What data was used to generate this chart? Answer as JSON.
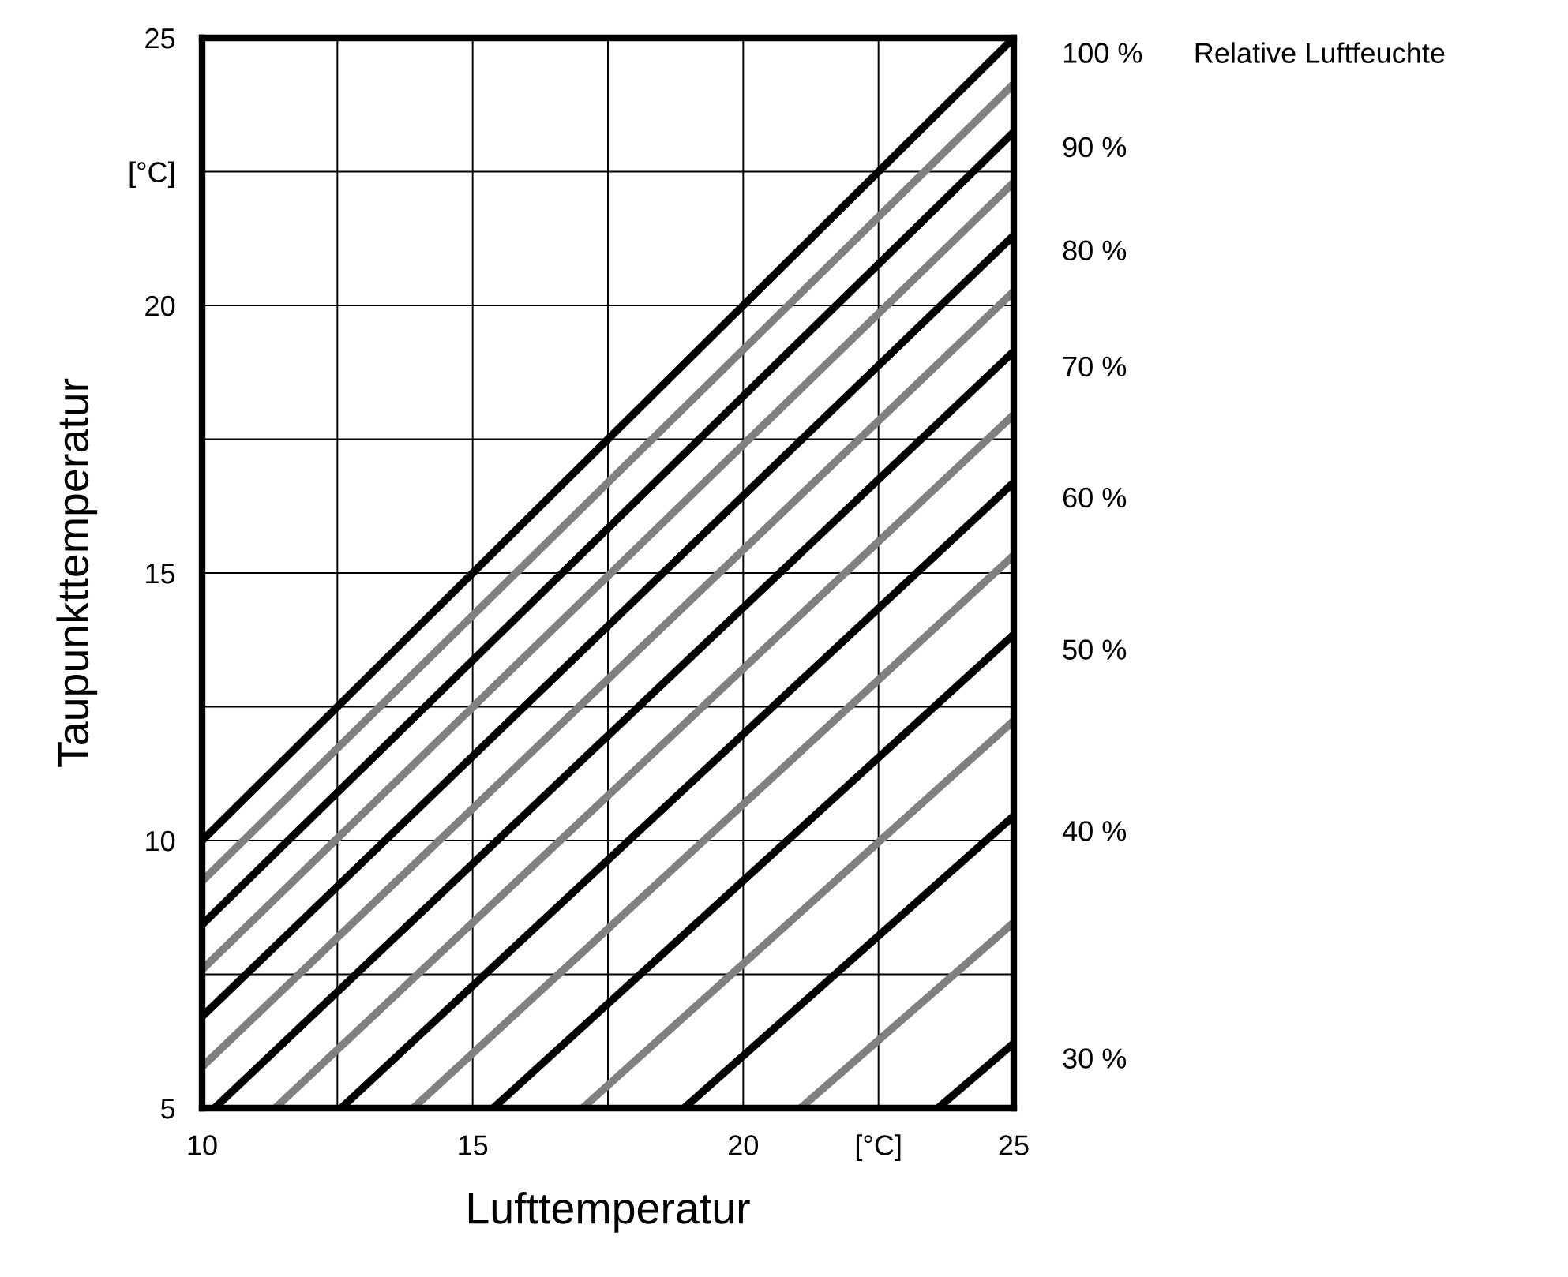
{
  "chart_data": {
    "type": "line",
    "xlabel": "Lufttemperatur",
    "ylabel": "Taupunkttemperatur",
    "xlim": [
      10,
      25
    ],
    "ylim": [
      5,
      25
    ],
    "xticks": [
      10,
      {
        "value": 12.5,
        "label": null
      },
      15,
      {
        "value": 17.5,
        "label": null
      },
      20,
      {
        "value": 22.5,
        "label": "[°C]"
      },
      25
    ],
    "yticks": [
      5,
      {
        "value": 7.5,
        "label": null
      },
      10,
      {
        "value": 12.5,
        "label": null
      },
      15,
      {
        "value": 17.5,
        "label": null
      },
      20,
      {
        "value": 22.5,
        "label": "[°C]"
      },
      25
    ],
    "grid": true,
    "legend": false,
    "marker": "none",
    "line_style": "solid",
    "annotations": [
      "Relative Luftfeuchte"
    ],
    "series": [
      {
        "name": "100 %",
        "color": "#000000",
        "x": [
          10,
          25
        ],
        "values": [
          10,
          25
        ]
      },
      {
        "color": "#808080",
        "x": [
          10,
          25
        ],
        "values": [
          9.24,
          24.14
        ]
      },
      {
        "name": "90 %",
        "color": "#000000",
        "x": [
          10,
          25
        ],
        "values": [
          8.43,
          23.24
        ]
      },
      {
        "color": "#808080",
        "x": [
          10,
          25
        ],
        "values": [
          7.59,
          22.3
        ]
      },
      {
        "name": "80 %",
        "color": "#000000",
        "x": [
          10,
          25
        ],
        "values": [
          6.71,
          21.31
        ]
      },
      {
        "color": "#808080",
        "x": [
          10,
          25
        ],
        "values": [
          5.77,
          20.26
        ]
      },
      {
        "name": "70 %",
        "color": "#000000",
        "x": [
          10.23,
          25
        ],
        "values": [
          5,
          19.14
        ]
      },
      {
        "color": "#808080",
        "x": [
          11.35,
          25
        ],
        "values": [
          5,
          17.96
        ]
      },
      {
        "name": "60 %",
        "color": "#000000",
        "x": [
          12.57,
          25
        ],
        "values": [
          5,
          16.69
        ]
      },
      {
        "color": "#808080",
        "x": [
          13.9,
          25
        ],
        "values": [
          5,
          15.33
        ]
      },
      {
        "name": "50 %",
        "color": "#000000",
        "x": [
          15.38,
          25
        ],
        "values": [
          5,
          13.85
        ]
      },
      {
        "color": "#808080",
        "x": [
          17.03,
          25
        ],
        "values": [
          5,
          12.24
        ]
      },
      {
        "name": "40 %",
        "color": "#000000",
        "x": [
          18.91,
          25
        ],
        "values": [
          5,
          10.46
        ]
      },
      {
        "color": "#808080",
        "x": [
          21.06,
          25
        ],
        "values": [
          5,
          8.47
        ]
      },
      {
        "name": "30 %",
        "color": "#000000",
        "x": [
          23.6,
          25
        ],
        "values": [
          5,
          6.21
        ]
      }
    ]
  }
}
